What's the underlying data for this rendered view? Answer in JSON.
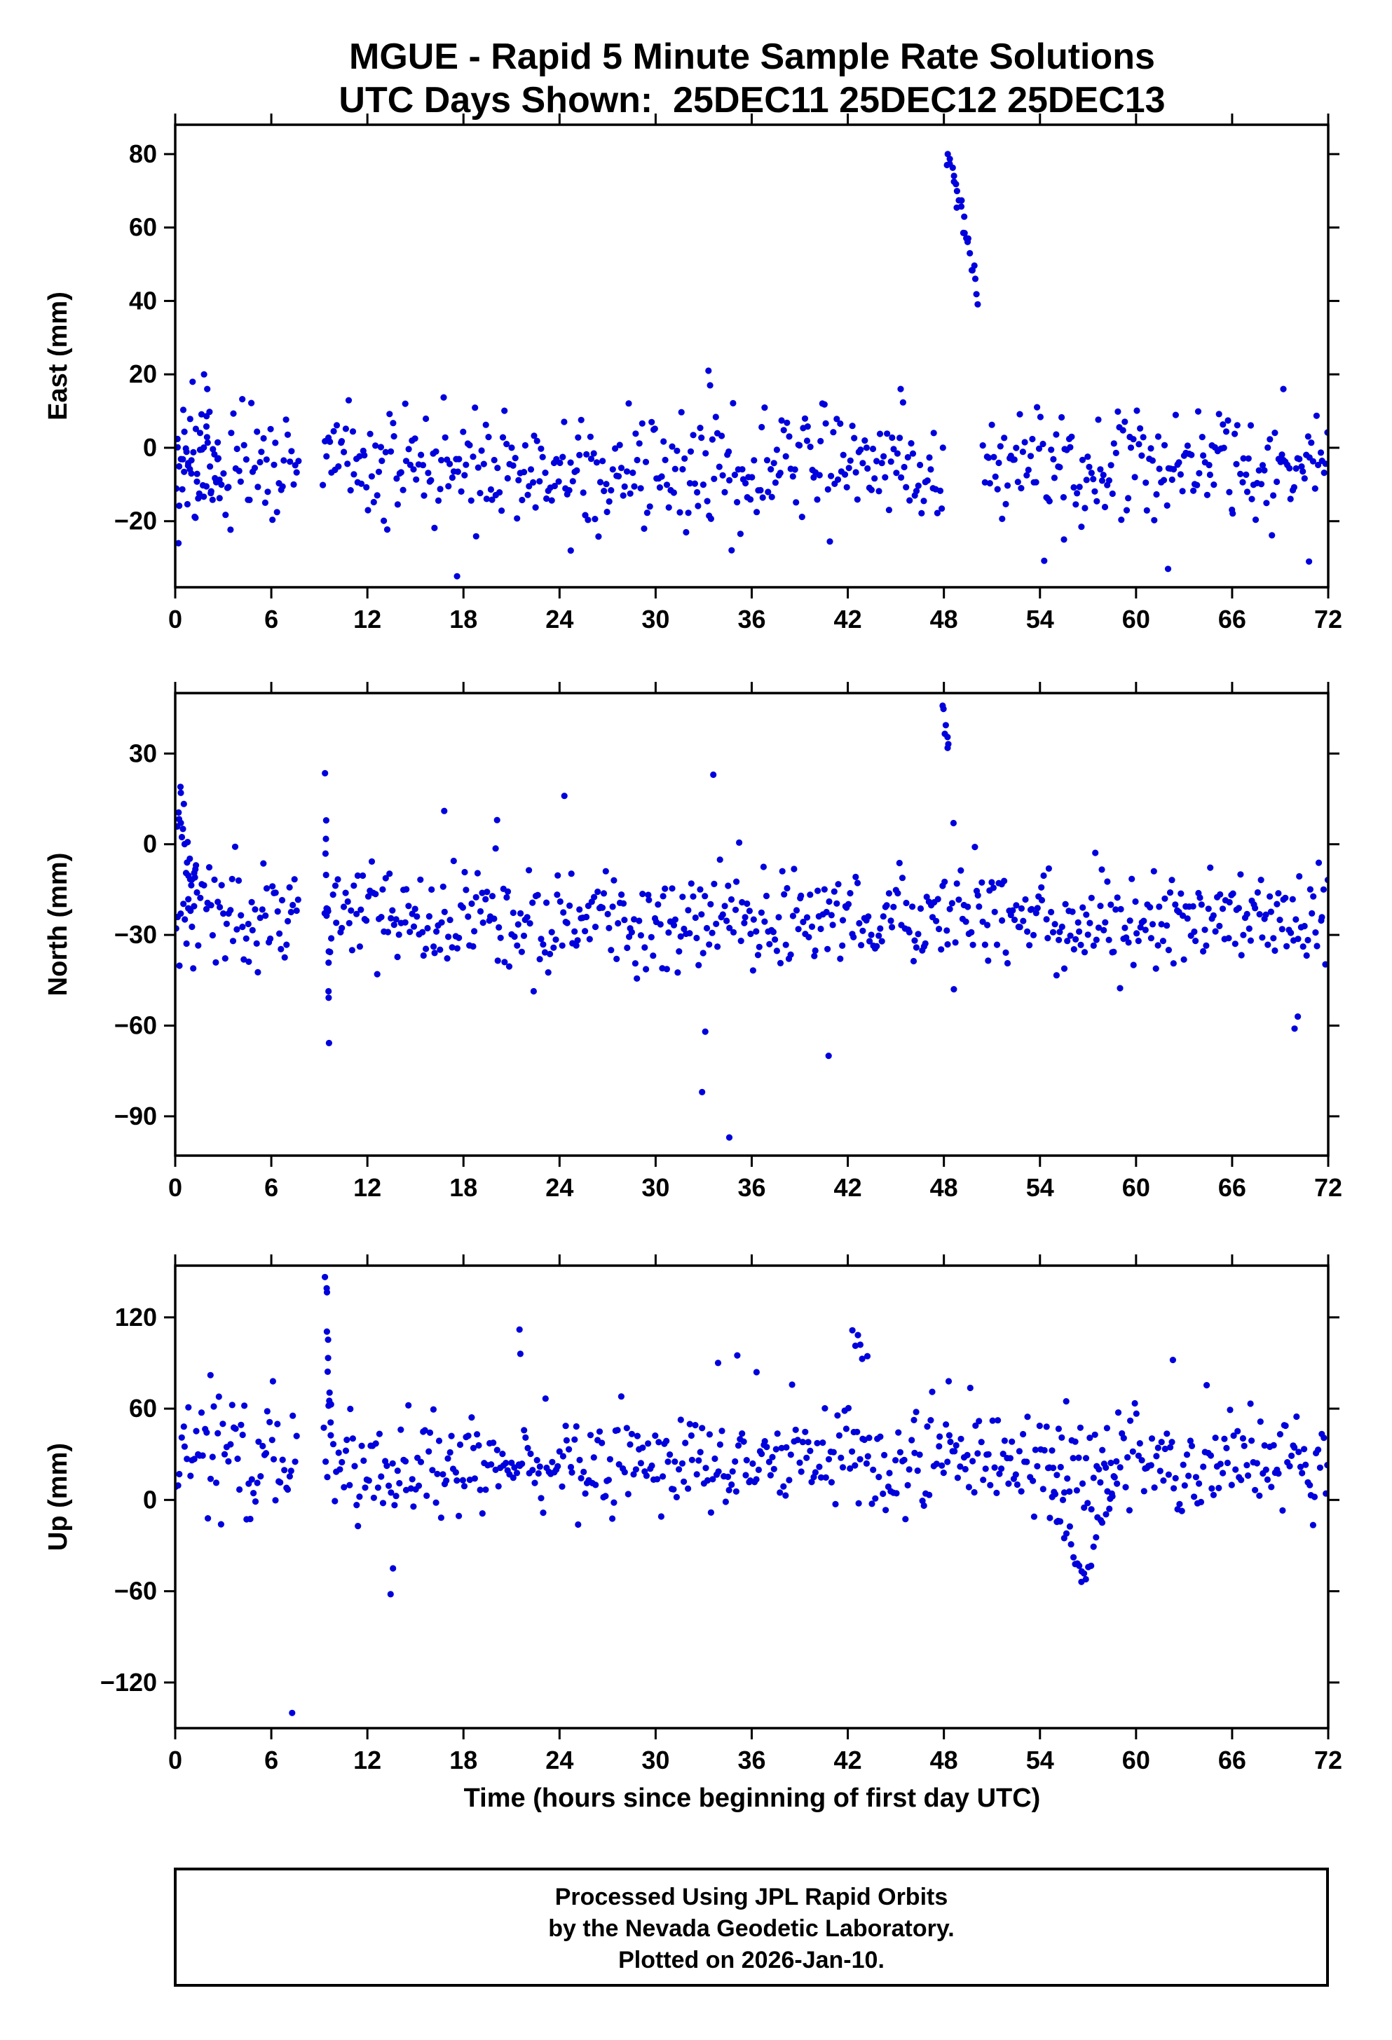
{
  "title": {
    "line1": "MGUE - Rapid 5 Minute Sample Rate Solutions",
    "line2": "UTC Days Shown:  25DEC11 25DEC12 25DEC13"
  },
  "x_axis_label": "Time (hours since beginning of first day UTC)",
  "footer": {
    "line1": "Processed Using JPL Rapid Orbits",
    "line2": "by the Nevada Geodetic Laboratory.",
    "line3": "Plotted on 2026-Jan-10."
  },
  "colors": {
    "point": "#0000dd",
    "axis": "#000000",
    "background": "#ffffff"
  },
  "chart_data": {
    "type": "scatter",
    "station": "MGUE",
    "title": "MGUE - Rapid 5 Minute Sample Rate Solutions",
    "subtitle": "UTC Days Shown:  25DEC11 25DEC12 25DEC13",
    "xlabel": "Time (hours since beginning of first day UTC)",
    "x_axis": {
      "range": [
        0,
        72
      ],
      "ticks": [
        0,
        6,
        12,
        18,
        24,
        30,
        36,
        42,
        48,
        54,
        60,
        66,
        72
      ]
    },
    "legend": "none",
    "grid": false,
    "panels": [
      {
        "name": "east",
        "ylabel": "East (mm)",
        "ylim": [
          -38,
          88
        ],
        "yticks": [
          -20,
          0,
          20,
          40,
          60,
          80
        ],
        "seed": 20111225,
        "n_points": 660,
        "baseline": {
          "mean": -5,
          "sd": 8,
          "min": -33,
          "max": 22
        },
        "gaps": [
          [
            7.7,
            9.2
          ],
          [
            48.0,
            50.4
          ]
        ],
        "clusters": [
          {
            "x0": 48.2,
            "x1": 50.1,
            "y0": 82,
            "y1": 43,
            "n": 26,
            "sd": 2.5
          },
          {
            "x0": 0.2,
            "x1": 2.8,
            "y0": 2,
            "y1": -2,
            "n": 30,
            "sd": 10
          }
        ],
        "outliers": [
          [
            17.6,
            -35
          ],
          [
            0.2,
            -26
          ],
          [
            1.8,
            20
          ],
          [
            2.0,
            16
          ],
          [
            33.3,
            21
          ],
          [
            33.4,
            17
          ],
          [
            45.3,
            16
          ],
          [
            69.2,
            16
          ],
          [
            62.0,
            -33
          ],
          [
            70.8,
            -31
          ],
          [
            55.5,
            -25
          ],
          [
            24.7,
            -28
          ]
        ]
      },
      {
        "name": "north",
        "ylabel": "North (mm)",
        "ylim": [
          -103,
          50
        ],
        "yticks": [
          -90,
          -60,
          -30,
          0,
          30
        ],
        "seed": 20121225,
        "n_points": 660,
        "baseline": {
          "mean": -25,
          "sd": 8.5,
          "min": -52,
          "max": 3
        },
        "gaps": [
          [
            7.7,
            9.2
          ]
        ],
        "clusters": [
          {
            "x0": 0.15,
            "x1": 1.3,
            "y0": 12,
            "y1": -16,
            "n": 22,
            "sd": 7
          },
          {
            "x0": 9.35,
            "x1": 9.65,
            "y0": 17,
            "y1": -61,
            "n": 12,
            "sd": 9
          },
          {
            "x0": 47.95,
            "x1": 48.3,
            "y0": 45,
            "y1": 32,
            "n": 7,
            "sd": 2
          }
        ],
        "outliers": [
          [
            0.35,
            17
          ],
          [
            32.9,
            -82
          ],
          [
            33.1,
            -62
          ],
          [
            34.6,
            -97
          ],
          [
            33.6,
            23
          ],
          [
            40.8,
            -70
          ],
          [
            48.6,
            7
          ],
          [
            69.9,
            -61
          ],
          [
            70.1,
            -57
          ],
          [
            24.3,
            16
          ],
          [
            16.8,
            11
          ],
          [
            20.1,
            8
          ]
        ]
      },
      {
        "name": "up",
        "ylabel": "Up (mm)",
        "ylim": [
          -150,
          154
        ],
        "yticks": [
          -120,
          -60,
          0,
          60,
          120
        ],
        "seed": 20131225,
        "n_points": 640,
        "baseline": {
          "mean": 25,
          "sd": 17,
          "min": -48,
          "max": 88
        },
        "gaps": [
          [
            7.7,
            9.2
          ]
        ],
        "clusters": [
          {
            "x0": 9.38,
            "x1": 9.72,
            "y0": 150,
            "y1": 45,
            "n": 11,
            "sd": 6
          },
          {
            "x0": 54.6,
            "x1": 56.6,
            "y0": 12,
            "y1": -52,
            "n": 16,
            "sd": 8
          },
          {
            "x0": 56.6,
            "x1": 58.8,
            "y0": -52,
            "y1": 12,
            "n": 16,
            "sd": 8
          },
          {
            "x0": 42.2,
            "x1": 43.2,
            "y0": 112,
            "y1": 95,
            "n": 6,
            "sd": 5
          }
        ],
        "outliers": [
          [
            7.3,
            -140
          ],
          [
            13.45,
            -62
          ],
          [
            13.6,
            -45
          ],
          [
            21.5,
            112
          ],
          [
            21.55,
            96
          ],
          [
            35.1,
            95
          ],
          [
            33.9,
            90
          ],
          [
            36.3,
            84
          ],
          [
            62.3,
            92
          ],
          [
            48.3,
            78
          ],
          [
            2.2,
            82
          ],
          [
            6.1,
            78
          ]
        ]
      }
    ]
  }
}
